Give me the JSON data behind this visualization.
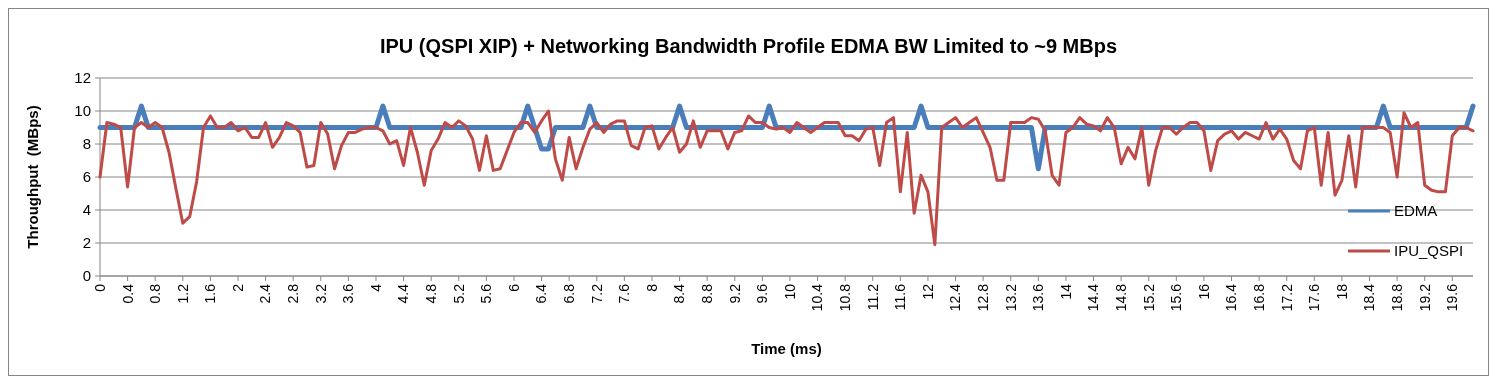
{
  "chart_data": {
    "type": "line",
    "title": "IPU (QSPI XIP) + Networking Bandwidth Profile EDMA BW Limited to ~9 MBps",
    "xlabel": "Time (ms)",
    "ylabel": "Throughput  (MBps)",
    "x": [
      0,
      0.1,
      0.2,
      0.3,
      0.4,
      0.5,
      0.6,
      0.7,
      0.8,
      0.9,
      1,
      1.1,
      1.2,
      1.3,
      1.4,
      1.5,
      1.6,
      1.7,
      1.8,
      1.9,
      2,
      2.1,
      2.2,
      2.3,
      2.4,
      2.5,
      2.6,
      2.7,
      2.8,
      2.9,
      3,
      3.1,
      3.2,
      3.3,
      3.4,
      3.5,
      3.6,
      3.7,
      3.8,
      3.9,
      4,
      4.1,
      4.2,
      4.3,
      4.4,
      4.5,
      4.6,
      4.7,
      4.8,
      4.9,
      5,
      5.1,
      5.2,
      5.3,
      5.4,
      5.5,
      5.6,
      5.7,
      5.8,
      5.9,
      6,
      6.1,
      6.2,
      6.3,
      6.4,
      6.5,
      6.6,
      6.7,
      6.8,
      6.9,
      7,
      7.1,
      7.2,
      7.3,
      7.4,
      7.5,
      7.6,
      7.7,
      7.8,
      7.9,
      8,
      8.1,
      8.2,
      8.3,
      8.4,
      8.5,
      8.6,
      8.7,
      8.8,
      8.9,
      9,
      9.1,
      9.2,
      9.3,
      9.4,
      9.5,
      9.6,
      9.7,
      9.8,
      9.9,
      10,
      10.1,
      10.2,
      10.3,
      10.4,
      10.5,
      10.6,
      10.7,
      10.8,
      10.9,
      11,
      11.1,
      11.2,
      11.3,
      11.4,
      11.5,
      11.6,
      11.7,
      11.8,
      11.9,
      12,
      12.1,
      12.2,
      12.3,
      12.4,
      12.5,
      12.6,
      12.7,
      12.8,
      12.9,
      13,
      13.1,
      13.2,
      13.3,
      13.4,
      13.5,
      13.6,
      13.7,
      13.8,
      13.9,
      14,
      14.1,
      14.2,
      14.3,
      14.4,
      14.5,
      14.6,
      14.7,
      14.8,
      14.9,
      15,
      15.1,
      15.2,
      15.3,
      15.4,
      15.5,
      15.6,
      15.7,
      15.8,
      15.9,
      16,
      16.1,
      16.2,
      16.3,
      16.4,
      16.5,
      16.6,
      16.7,
      16.8,
      16.9,
      17,
      17.1,
      17.2,
      17.3,
      17.4,
      17.5,
      17.6,
      17.7,
      17.8,
      17.9,
      18,
      18.1,
      18.2,
      18.3,
      18.4,
      18.5,
      18.6,
      18.7,
      18.8,
      18.9,
      19,
      19.1,
      19.2,
      19.3,
      19.4,
      19.5,
      19.6,
      19.7,
      19.8,
      19.9
    ],
    "series": [
      {
        "name": "EDMA",
        "color": "#4a7ebb",
        "values": [
          9,
          9,
          9,
          9,
          9,
          9,
          10.3,
          9,
          9,
          9,
          9,
          9,
          9,
          9,
          9,
          9,
          9,
          9,
          9,
          9,
          9,
          9,
          9,
          9,
          9,
          9,
          9,
          9,
          9,
          9,
          9,
          9,
          9,
          9,
          9,
          9,
          9,
          9,
          9,
          9,
          9,
          10.3,
          9,
          9,
          9,
          9,
          9,
          9,
          9,
          9,
          9,
          9,
          9,
          9,
          9,
          9,
          9,
          9,
          9,
          9,
          9,
          9,
          10.3,
          9,
          7.7,
          7.7,
          9,
          9,
          9,
          9,
          9,
          10.3,
          9,
          9,
          9,
          9,
          9,
          9,
          9,
          9,
          9,
          9,
          9,
          9,
          10.3,
          9,
          9,
          9,
          9,
          9,
          9,
          9,
          9,
          9,
          9,
          9,
          9,
          10.3,
          9,
          9,
          9,
          9,
          9,
          9,
          9,
          9,
          9,
          9,
          9,
          9,
          9,
          9,
          9,
          9,
          9,
          9,
          9,
          9,
          9,
          10.3,
          9,
          9,
          9,
          9,
          9,
          9,
          9,
          9,
          9,
          9,
          9,
          9,
          9,
          9,
          9,
          9,
          6.5,
          9,
          9,
          9,
          9,
          9,
          9,
          9,
          9,
          9,
          9,
          9,
          9,
          9,
          9,
          9,
          9,
          9,
          9,
          9,
          9,
          9,
          9,
          9,
          9,
          9,
          9,
          9,
          9,
          9,
          9,
          9,
          9,
          9,
          9,
          9,
          9,
          9,
          9,
          9,
          9,
          9,
          9,
          9,
          9,
          9,
          9,
          9,
          9,
          9,
          10.3,
          9,
          9,
          9,
          9,
          9,
          9,
          9,
          9,
          9,
          9,
          9,
          9,
          10.3
        ]
      },
      {
        "name": "IPU_QSPI",
        "color": "#be4b48",
        "values": [
          6.0,
          9.3,
          9.2,
          9.0,
          5.4,
          9.0,
          9.3,
          9.0,
          9.3,
          9.0,
          7.5,
          5.3,
          3.2,
          3.6,
          5.7,
          9.0,
          9.7,
          9.0,
          9.0,
          9.3,
          8.8,
          9.0,
          8.4,
          8.4,
          9.3,
          7.8,
          8.4,
          9.3,
          9.1,
          8.7,
          6.6,
          6.7,
          9.3,
          8.6,
          6.5,
          7.9,
          8.7,
          8.7,
          8.9,
          9.0,
          9.0,
          8.8,
          8.0,
          8.2,
          6.7,
          9.0,
          7.5,
          5.5,
          7.6,
          8.3,
          9.3,
          9.0,
          9.4,
          9.1,
          8.3,
          6.4,
          8.5,
          6.4,
          6.5,
          7.6,
          8.7,
          9.3,
          9.3,
          8.7,
          9.4,
          10.0,
          7.1,
          5.8,
          8.4,
          6.5,
          7.8,
          8.9,
          9.3,
          8.7,
          9.2,
          9.4,
          9.4,
          7.9,
          7.7,
          9.0,
          9.1,
          7.7,
          8.4,
          9.0,
          7.5,
          8.0,
          9.4,
          7.8,
          8.8,
          8.8,
          8.8,
          7.7,
          8.7,
          8.8,
          9.7,
          9.3,
          9.3,
          9.0,
          8.9,
          9.0,
          8.7,
          9.3,
          9.0,
          8.7,
          9.0,
          9.3,
          9.3,
          9.3,
          8.5,
          8.5,
          8.2,
          8.9,
          9.0,
          6.7,
          9.3,
          9.6,
          5.1,
          8.7,
          3.8,
          6.1,
          5.1,
          1.9,
          9.0,
          9.3,
          9.6,
          9.0,
          9.3,
          9.6,
          8.7,
          7.8,
          5.8,
          5.8,
          9.3,
          9.3,
          9.3,
          9.6,
          9.5,
          8.8,
          6.1,
          5.5,
          8.7,
          9.0,
          9.6,
          9.2,
          9.1,
          8.8,
          9.6,
          9.0,
          6.8,
          7.8,
          7.1,
          9.0,
          5.5,
          7.6,
          9.0,
          9.0,
          8.6,
          9.0,
          9.3,
          9.3,
          8.8,
          6.4,
          8.2,
          8.6,
          8.8,
          8.3,
          8.7,
          8.5,
          8.3,
          9.3,
          8.3,
          8.9,
          8.3,
          7.0,
          6.5,
          8.8,
          9.0,
          5.5,
          8.7,
          4.9,
          5.8,
          8.5,
          5.4,
          9.0,
          9.0,
          9.0,
          9.0,
          8.7,
          6.0,
          9.9,
          9.0,
          9.3,
          5.5,
          5.2,
          5.1,
          5.1,
          8.5,
          9.0,
          9.0,
          8.8
        ]
      }
    ],
    "xlim": [
      0,
      19.9
    ],
    "xticks": [
      0,
      0.4,
      0.8,
      1.2,
      1.6,
      2,
      2.4,
      2.8,
      3.2,
      3.6,
      4,
      4.4,
      4.8,
      5.2,
      5.6,
      6,
      6.4,
      6.8,
      7.2,
      7.6,
      8,
      8.4,
      8.8,
      9.2,
      9.6,
      10,
      10.4,
      10.8,
      11.2,
      11.6,
      12,
      12.4,
      12.8,
      13.2,
      13.6,
      14,
      14.4,
      14.8,
      15.2,
      15.6,
      16,
      16.4,
      16.8,
      17.2,
      17.6,
      18,
      18.4,
      18.8,
      19.2,
      19.6
    ],
    "ylim": [
      0,
      12
    ],
    "yticks": [
      0,
      2,
      4,
      6,
      8,
      10,
      12
    ],
    "grid": "y",
    "legend": "right",
    "marker": "none",
    "line_style": "solid"
  }
}
